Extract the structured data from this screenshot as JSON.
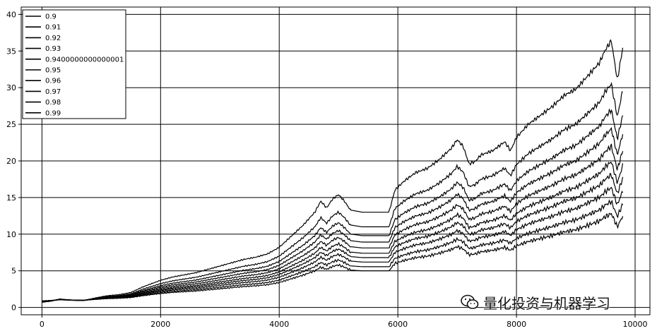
{
  "chart_data": {
    "type": "line",
    "xlim": [
      -350,
      10250
    ],
    "ylim": [
      -1,
      41
    ],
    "x_ticks": [
      0,
      2000,
      4000,
      6000,
      8000,
      10000
    ],
    "y_ticks": [
      0,
      5,
      10,
      15,
      20,
      25,
      30,
      35,
      40
    ],
    "x_tick_labels": [
      "0",
      "2000",
      "4000",
      "6000",
      "8000",
      "10000"
    ],
    "y_tick_labels": [
      "0",
      "5",
      "10",
      "15",
      "20",
      "25",
      "30",
      "35",
      "40"
    ],
    "grid": true,
    "legend_position": "top-left",
    "line_color": "#000000",
    "x_end": 9800,
    "base_path": {
      "x": [
        0,
        150,
        300,
        500,
        700,
        900,
        1100,
        1300,
        1500,
        1700,
        1900,
        2000,
        2200,
        2400,
        2600,
        2800,
        3000,
        3200,
        3400,
        3600,
        3800,
        4000,
        4200,
        4400,
        4600,
        4700,
        4800,
        4900,
        5000,
        5100,
        5200,
        5400,
        5600,
        5850,
        5950,
        6100,
        6300,
        6500,
        6700,
        6900,
        7000,
        7100,
        7200,
        7300,
        7400,
        7600,
        7800,
        7900,
        8000,
        8200,
        8400,
        8600,
        8800,
        9000,
        9200,
        9400,
        9500,
        9600,
        9700,
        9800
      ],
      "y": [
        0.9,
        0.95,
        1.05,
        1.0,
        0.98,
        1.1,
        1.2,
        1.25,
        1.35,
        1.6,
        1.8,
        1.9,
        2.05,
        2.15,
        2.25,
        2.4,
        2.55,
        2.7,
        2.85,
        2.95,
        3.1,
        3.4,
        3.9,
        4.4,
        5.0,
        5.5,
        5.2,
        5.6,
        5.8,
        5.5,
        5.1,
        5.0,
        5.0,
        5.0,
        6.0,
        6.4,
        6.8,
        7.0,
        7.4,
        7.9,
        8.3,
        8.0,
        7.2,
        7.3,
        7.6,
        7.8,
        8.2,
        7.8,
        8.4,
        9.0,
        9.4,
        9.8,
        10.3,
        10.6,
        11.2,
        11.8,
        12.4,
        12.8,
        11.0,
        12.6
      ]
    },
    "series": [
      {
        "name": "0.9",
        "values_scale": 1.0
      },
      {
        "name": "0.91",
        "values_scale": 1.14
      },
      {
        "name": "0.92",
        "values_scale": 1.3
      },
      {
        "name": "0.93",
        "values_scale": 1.45
      },
      {
        "name": "0.9400000000000001",
        "values_scale": 1.6
      },
      {
        "name": "0.95",
        "values_scale": 1.78
      },
      {
        "name": "0.96",
        "values_scale": 1.98
      },
      {
        "name": "0.97",
        "values_scale": 2.2
      },
      {
        "name": "0.98",
        "values_scale": 2.5
      },
      {
        "name": "0.99",
        "values_scale": 3.0
      }
    ]
  },
  "watermark": {
    "text": "量化投资与机器学习"
  }
}
